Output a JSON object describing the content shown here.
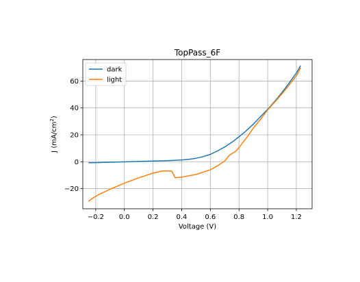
{
  "chart_data": {
    "type": "line",
    "title": "TopPass_6F",
    "xlabel": "Voltage (V)",
    "ylabel_main": "J (mA/cm",
    "ylabel_sup": "2",
    "ylabel_close": ")",
    "xlim": [
      -0.29,
      1.31
    ],
    "ylim": [
      -35,
      76
    ],
    "xticks": [
      -0.2,
      0.0,
      0.2,
      0.4,
      0.6,
      0.8,
      1.0,
      1.2
    ],
    "xtick_labels": [
      "−0.2",
      "0.0",
      "0.2",
      "0.4",
      "0.6",
      "0.8",
      "1.0",
      "1.2"
    ],
    "yticks": [
      -20,
      0,
      20,
      40,
      60
    ],
    "ytick_labels": [
      "−20",
      "0",
      "20",
      "40",
      "60"
    ],
    "grid": true,
    "legend_position": "top-left",
    "series": [
      {
        "name": "dark",
        "color": "#1f77b4",
        "x": [
          -0.25,
          -0.2,
          -0.1,
          0.0,
          0.1,
          0.2,
          0.3,
          0.4,
          0.45,
          0.5,
          0.55,
          0.6,
          0.65,
          0.7,
          0.75,
          0.8,
          0.85,
          0.9,
          0.95,
          1.0,
          1.05,
          1.1,
          1.15,
          1.2,
          1.23
        ],
        "y": [
          -0.8,
          -0.7,
          -0.4,
          -0.1,
          0.2,
          0.5,
          0.8,
          1.3,
          1.8,
          2.6,
          3.8,
          5.5,
          8.0,
          11.0,
          14.5,
          18.5,
          23.0,
          28.0,
          33.5,
          39.0,
          45.0,
          51.5,
          58.5,
          66.0,
          71.5
        ]
      },
      {
        "name": "light",
        "color": "#ff7f0e",
        "x": [
          -0.25,
          -0.22,
          -0.18,
          -0.1,
          0.0,
          0.1,
          0.2,
          0.26,
          0.3,
          0.33,
          0.355,
          0.4,
          0.5,
          0.6,
          0.65,
          0.7,
          0.73,
          0.75,
          0.78,
          0.8,
          0.85,
          0.9,
          0.95,
          1.0,
          1.05,
          1.1,
          1.15,
          1.2,
          1.23
        ],
        "y": [
          -29.5,
          -27.0,
          -24.5,
          -20.5,
          -16.0,
          -12.0,
          -8.5,
          -7.0,
          -6.8,
          -7.0,
          -12.0,
          -11.5,
          -9.5,
          -6.0,
          -3.0,
          0.5,
          4.5,
          6.0,
          8.0,
          10.5,
          17.5,
          25.0,
          31.5,
          38.5,
          44.5,
          50.5,
          57.0,
          64.0,
          70.0
        ]
      }
    ]
  }
}
